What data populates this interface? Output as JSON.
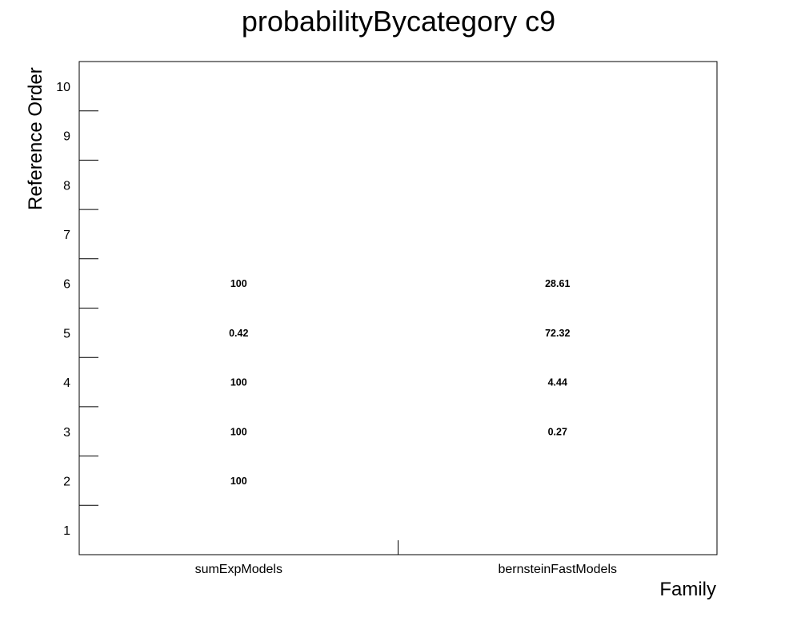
{
  "chart_data": {
    "type": "table",
    "title": "probabilityBycategory c9",
    "xlabel": "Family",
    "ylabel": "Reference Order",
    "categories": [
      "sumExpModels",
      "bernsteinFastModels"
    ],
    "y_ticks": [
      "1",
      "2",
      "3",
      "4",
      "5",
      "6",
      "7",
      "8",
      "9",
      "10"
    ],
    "ylim": [
      0.5,
      10.5
    ],
    "grid": false,
    "cells": [
      {
        "x": "sumExpModels",
        "y": 2,
        "label": "100"
      },
      {
        "x": "sumExpModels",
        "y": 3,
        "label": "100"
      },
      {
        "x": "sumExpModels",
        "y": 4,
        "label": "100"
      },
      {
        "x": "sumExpModels",
        "y": 5,
        "label": "0.42"
      },
      {
        "x": "sumExpModels",
        "y": 6,
        "label": "100"
      },
      {
        "x": "bernsteinFastModels",
        "y": 3,
        "label": "0.27"
      },
      {
        "x": "bernsteinFastModels",
        "y": 4,
        "label": "4.44"
      },
      {
        "x": "bernsteinFastModels",
        "y": 5,
        "label": "72.32"
      },
      {
        "x": "bernsteinFastModels",
        "y": 6,
        "label": "28.61"
      }
    ]
  }
}
